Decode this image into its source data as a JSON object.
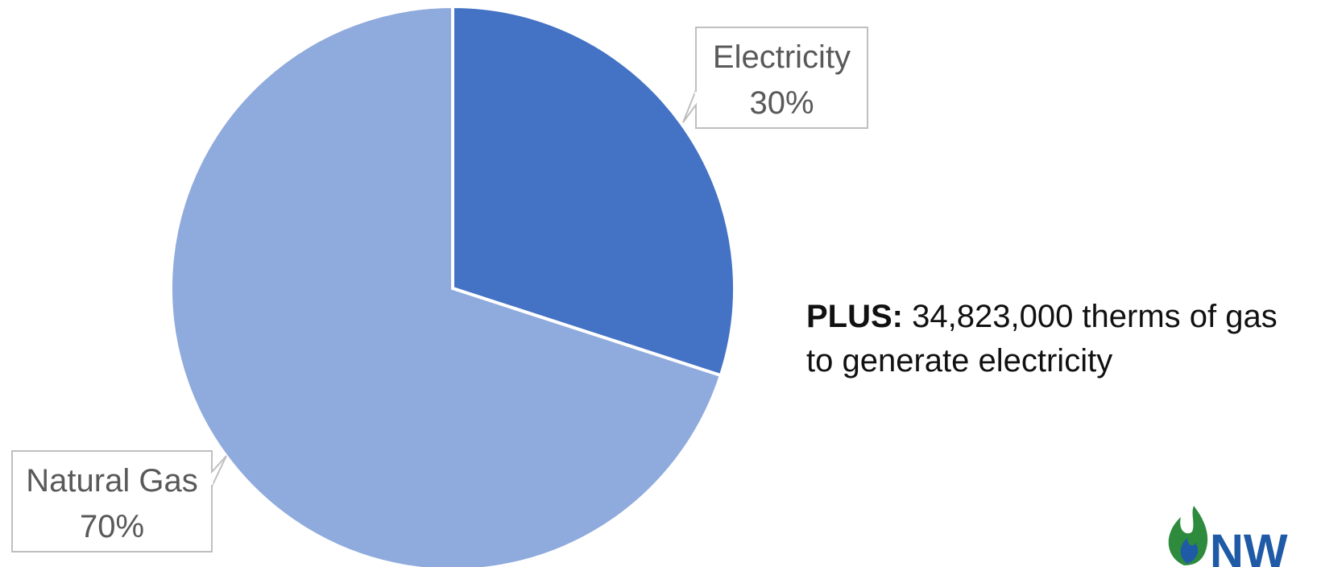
{
  "chart_data": {
    "type": "pie",
    "title": "",
    "slices": [
      {
        "label": "Electricity",
        "value": 30,
        "value_label": "30%",
        "color": "#4472C4"
      },
      {
        "label": "Natural Gas",
        "value": 70,
        "value_label": "70%",
        "color": "#8FAADC"
      }
    ],
    "start_angle_deg": 0,
    "direction": "clockwise",
    "data_labels": "callout"
  },
  "note": {
    "label": "PLUS:",
    "text": " 34,823,000 therms of gas to generate electricity"
  },
  "logo": {
    "text": "NW",
    "colors": [
      "#2E8B3E",
      "#1F5AA6",
      "#8DC63F"
    ]
  }
}
